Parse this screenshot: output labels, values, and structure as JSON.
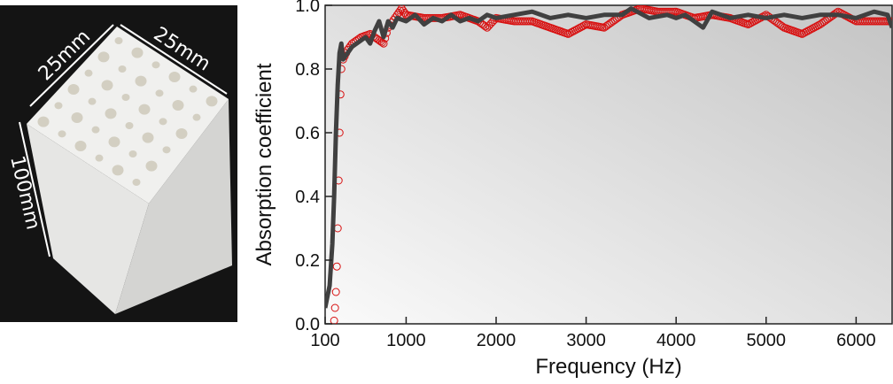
{
  "photo": {
    "dimension_labels": [
      "25mm",
      "25mm",
      "100mm"
    ]
  },
  "chart_data": {
    "type": "line",
    "xlabel": "Frequency (Hz)",
    "ylabel": "Absorption coefficient",
    "xlim": [
      100,
      6400
    ],
    "ylim": [
      0.0,
      1.0
    ],
    "xticks": [
      100,
      1000,
      2000,
      3000,
      4000,
      5000,
      6000
    ],
    "xtick_labels": [
      "100",
      "1000",
      "2000",
      "3000",
      "4000",
      "5000",
      "6000"
    ],
    "yticks": [
      0.0,
      0.2,
      0.4,
      0.6,
      0.8,
      1.0
    ],
    "ytick_labels": [
      "0.0",
      "0.2",
      "0.4",
      "0.6",
      "0.8",
      "1.0"
    ],
    "grid": false,
    "background": "gradient light gray",
    "series": [
      {
        "style": "line",
        "color": "#404040",
        "points": [
          [
            100,
            0.05
          ],
          [
            150,
            0.12
          ],
          [
            180,
            0.25
          ],
          [
            200,
            0.4
          ],
          [
            220,
            0.6
          ],
          [
            240,
            0.75
          ],
          [
            260,
            0.85
          ],
          [
            280,
            0.88
          ],
          [
            300,
            0.83
          ],
          [
            350,
            0.85
          ],
          [
            400,
            0.87
          ],
          [
            450,
            0.88
          ],
          [
            500,
            0.89
          ],
          [
            550,
            0.9
          ],
          [
            600,
            0.88
          ],
          [
            650,
            0.92
          ],
          [
            700,
            0.95
          ],
          [
            750,
            0.9
          ],
          [
            800,
            0.95
          ],
          [
            850,
            0.93
          ],
          [
            900,
            0.96
          ],
          [
            1000,
            0.95
          ],
          [
            1100,
            0.97
          ],
          [
            1200,
            0.94
          ],
          [
            1300,
            0.96
          ],
          [
            1400,
            0.95
          ],
          [
            1500,
            0.97
          ],
          [
            1600,
            0.95
          ],
          [
            1700,
            0.96
          ],
          [
            1800,
            0.95
          ],
          [
            1900,
            0.97
          ],
          [
            2000,
            0.96
          ],
          [
            2200,
            0.97
          ],
          [
            2400,
            0.98
          ],
          [
            2600,
            0.96
          ],
          [
            2800,
            0.97
          ],
          [
            3000,
            0.96
          ],
          [
            3200,
            0.97
          ],
          [
            3400,
            0.97
          ],
          [
            3500,
            0.99
          ],
          [
            3700,
            0.96
          ],
          [
            3900,
            0.97
          ],
          [
            4000,
            0.96
          ],
          [
            4100,
            0.97
          ],
          [
            4200,
            0.95
          ],
          [
            4300,
            0.93
          ],
          [
            4400,
            0.98
          ],
          [
            4600,
            0.96
          ],
          [
            4800,
            0.97
          ],
          [
            5000,
            0.96
          ],
          [
            5200,
            0.97
          ],
          [
            5400,
            0.96
          ],
          [
            5600,
            0.97
          ],
          [
            5800,
            0.97
          ],
          [
            6000,
            0.96
          ],
          [
            6200,
            0.98
          ],
          [
            6350,
            0.97
          ],
          [
            6400,
            0.93
          ]
        ]
      },
      {
        "style": "open-circles",
        "color": "#d81010",
        "points": [
          [
            200,
            0.01
          ],
          [
            210,
            0.05
          ],
          [
            220,
            0.1
          ],
          [
            230,
            0.18
          ],
          [
            240,
            0.3
          ],
          [
            250,
            0.45
          ],
          [
            260,
            0.6
          ],
          [
            270,
            0.72
          ],
          [
            280,
            0.8
          ],
          [
            300,
            0.83
          ],
          [
            350,
            0.86
          ],
          [
            400,
            0.88
          ],
          [
            500,
            0.9
          ],
          [
            600,
            0.91
          ],
          [
            700,
            0.89
          ],
          [
            750,
            0.88
          ],
          [
            800,
            0.93
          ],
          [
            900,
            0.97
          ],
          [
            950,
            0.99
          ],
          [
            1000,
            0.97
          ],
          [
            1200,
            0.96
          ],
          [
            1400,
            0.96
          ],
          [
            1600,
            0.97
          ],
          [
            1800,
            0.95
          ],
          [
            1900,
            0.93
          ],
          [
            2000,
            0.96
          ],
          [
            2200,
            0.95
          ],
          [
            2400,
            0.95
          ],
          [
            2600,
            0.93
          ],
          [
            2800,
            0.91
          ],
          [
            3000,
            0.94
          ],
          [
            3200,
            0.93
          ],
          [
            3400,
            0.97
          ],
          [
            3600,
            0.99
          ],
          [
            3800,
            0.98
          ],
          [
            4000,
            0.98
          ],
          [
            4200,
            0.96
          ],
          [
            4400,
            0.97
          ],
          [
            4600,
            0.96
          ],
          [
            4800,
            0.94
          ],
          [
            5000,
            0.97
          ],
          [
            5200,
            0.93
          ],
          [
            5400,
            0.91
          ],
          [
            5600,
            0.94
          ],
          [
            5800,
            0.98
          ],
          [
            6000,
            0.95
          ],
          [
            6200,
            0.95
          ],
          [
            6400,
            0.95
          ]
        ]
      }
    ]
  }
}
